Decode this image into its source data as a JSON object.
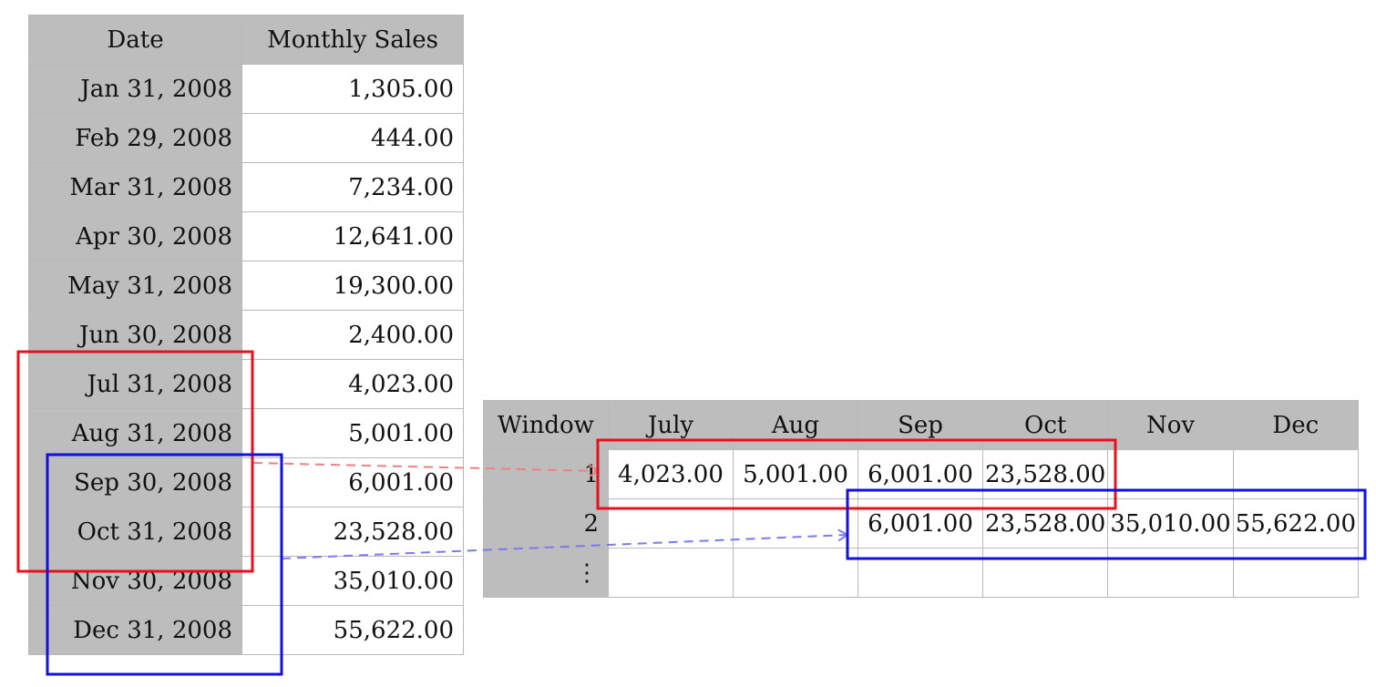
{
  "sales_table": {
    "headers": [
      "Date",
      "Monthly Sales"
    ],
    "rows": [
      {
        "date": "Jan 31, 2008",
        "sales": "1,305.00"
      },
      {
        "date": "Feb 29, 2008",
        "sales": "444.00"
      },
      {
        "date": "Mar 31, 2008",
        "sales": "7,234.00"
      },
      {
        "date": "Apr 30, 2008",
        "sales": "12,641.00"
      },
      {
        "date": "May 31, 2008",
        "sales": "19,300.00"
      },
      {
        "date": "Jun 30, 2008",
        "sales": "2,400.00"
      },
      {
        "date": "Jul 31, 2008",
        "sales": "4,023.00"
      },
      {
        "date": "Aug 31, 2008",
        "sales": "5,001.00"
      },
      {
        "date": "Sep 30, 2008",
        "sales": "6,001.00"
      },
      {
        "date": "Oct 31, 2008",
        "sales": "23,528.00"
      },
      {
        "date": "Nov 30, 2008",
        "sales": "35,010.00"
      },
      {
        "date": "Dec 31, 2008",
        "sales": "55,622.00"
      }
    ]
  },
  "window_table": {
    "headers": [
      "Window",
      "July",
      "Aug",
      "Sep",
      "Oct",
      "Nov",
      "Dec"
    ],
    "rows": [
      {
        "window": "1",
        "values": [
          "4,023.00",
          "5,001.00",
          "6,001.00",
          "23,528.00",
          "",
          ""
        ]
      },
      {
        "window": "2",
        "values": [
          "",
          "",
          "6,001.00",
          "23,528.00",
          "35,010.00",
          "55,622.00"
        ]
      },
      {
        "window": "⋮",
        "values": [
          "",
          "",
          "",
          "",
          "",
          ""
        ]
      }
    ]
  },
  "colors": {
    "header_gray": "#bdbdbd",
    "window1_box": "#e8101a",
    "window2_box": "#1010e0",
    "window1_arrow": "#f08080",
    "window2_arrow": "#7b7bf0"
  }
}
